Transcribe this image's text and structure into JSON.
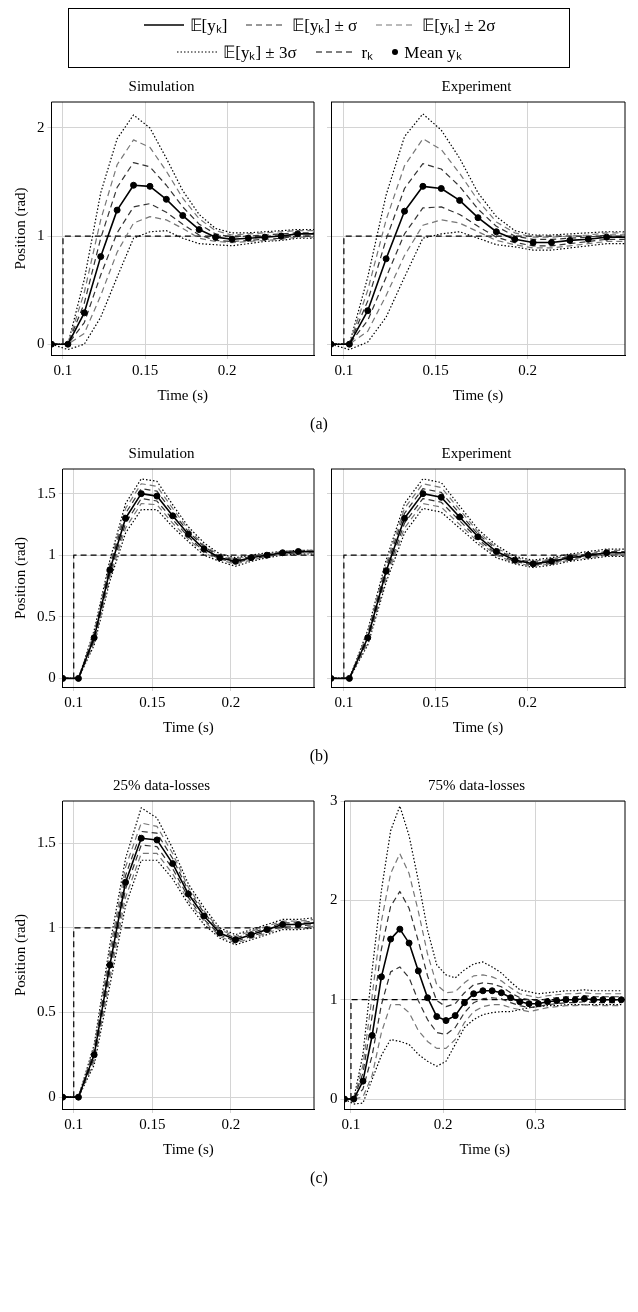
{
  "chart_data": [
    {
      "type": "line",
      "title": "Simulation",
      "xlabel": "Time (s)",
      "ylabel": "Position (rad)",
      "legend": "top",
      "grid": true,
      "annotations": [
        "(a)"
      ],
      "xlim": [
        0.093,
        0.253
      ],
      "xticks": [
        0.1,
        0.15,
        0.2
      ],
      "ylim": [
        -0.1,
        2.24
      ],
      "yticks": [
        0,
        1,
        2
      ],
      "x": [
        0.093,
        0.103,
        0.113,
        0.123,
        0.133,
        0.143,
        0.153,
        0.163,
        0.173,
        0.183,
        0.193,
        0.203,
        0.213,
        0.223,
        0.233,
        0.243,
        0.253
      ],
      "series": [
        {
          "name": "𝔼[yₖ]",
          "color": "#000000",
          "line_style": "solid",
          "values": [
            0,
            0,
            0.29,
            0.81,
            1.24,
            1.47,
            1.46,
            1.34,
            1.19,
            1.06,
            0.99,
            0.97,
            0.98,
            0.99,
            1.0,
            1.02,
            1.02
          ]
        },
        {
          "name": "𝔼[yₖ] ± σ",
          "color": "#333333",
          "line_style": "dashed",
          "values": [
            0,
            0,
            0.38,
            0.98,
            1.45,
            1.68,
            1.64,
            1.47,
            1.27,
            1.11,
            1.02,
            0.99,
            1.0,
            1.01,
            1.02,
            1.03,
            1.03
          ]
        },
        {
          "color": "#333333",
          "line_style": "dashed",
          "values": [
            0,
            0,
            0.2,
            0.64,
            1.03,
            1.27,
            1.3,
            1.22,
            1.11,
            1.01,
            0.96,
            0.95,
            0.96,
            0.97,
            0.98,
            1.0,
            1.0
          ]
        },
        {
          "name": "𝔼[yₖ] ± 2σ",
          "color": "#777777",
          "line_style": "dashed",
          "values": [
            0,
            0,
            0.48,
            1.15,
            1.66,
            1.89,
            1.82,
            1.6,
            1.35,
            1.16,
            1.05,
            1.01,
            1.02,
            1.03,
            1.04,
            1.05,
            1.05
          ]
        },
        {
          "color": "#777777",
          "line_style": "dashed",
          "values": [
            0,
            0,
            0.1,
            0.45,
            0.85,
            1.12,
            1.18,
            1.15,
            1.07,
            0.98,
            0.95,
            0.94,
            0.95,
            0.96,
            0.97,
            0.99,
            0.99
          ]
        },
        {
          "name": "𝔼[yₖ] ± 3σ",
          "color": "#000000",
          "line_style": "dotted",
          "values": [
            0,
            0,
            0.6,
            1.4,
            1.9,
            2.12,
            2.0,
            1.72,
            1.42,
            1.2,
            1.07,
            1.03,
            1.03,
            1.04,
            1.05,
            1.06,
            1.06
          ]
        },
        {
          "color": "#000000",
          "line_style": "dotted",
          "values": [
            0,
            -0.05,
            0.0,
            0.25,
            0.62,
            0.98,
            1.04,
            1.05,
            0.98,
            0.93,
            0.92,
            0.91,
            0.93,
            0.95,
            0.96,
            0.98,
            0.98
          ]
        },
        {
          "name": "rₖ",
          "color": "#000000",
          "line_style": "dashed",
          "x": [
            0.1,
            0.1,
            0.253
          ],
          "values": [
            0,
            1,
            1
          ]
        },
        {
          "name": "Mean yₖ",
          "type": "scatter",
          "color": "#000000",
          "marker": "circle",
          "x": [
            0.093,
            0.103,
            0.113,
            0.123,
            0.133,
            0.143,
            0.153,
            0.163,
            0.173,
            0.183,
            0.193,
            0.203,
            0.213,
            0.223,
            0.233,
            0.243
          ],
          "values": [
            0,
            0,
            0.29,
            0.81,
            1.24,
            1.47,
            1.46,
            1.34,
            1.19,
            1.06,
            0.99,
            0.97,
            0.98,
            0.99,
            1.0,
            1.02
          ]
        }
      ]
    },
    {
      "type": "line",
      "title": "Experiment",
      "xlabel": "Time (s)",
      "grid": true,
      "tick_labels": "x",
      "xlim": [
        0.093,
        0.253
      ],
      "xticks": [
        0.1,
        0.15,
        0.2
      ],
      "ylim": [
        -0.1,
        2.24
      ],
      "yticks": [
        0,
        1,
        2
      ],
      "x": [
        0.093,
        0.103,
        0.113,
        0.123,
        0.133,
        0.143,
        0.153,
        0.163,
        0.173,
        0.183,
        0.193,
        0.203,
        0.213,
        0.223,
        0.233,
        0.243,
        0.253
      ],
      "series": [
        {
          "color": "#000000",
          "line_style": "solid",
          "values": [
            0,
            0,
            0.31,
            0.79,
            1.23,
            1.46,
            1.44,
            1.33,
            1.17,
            1.04,
            0.97,
            0.94,
            0.94,
            0.96,
            0.97,
            0.99,
            0.99
          ]
        },
        {
          "color": "#333333",
          "line_style": "dashed",
          "values": [
            0,
            0,
            0.4,
            0.97,
            1.44,
            1.67,
            1.62,
            1.46,
            1.25,
            1.09,
            1.0,
            0.97,
            0.97,
            0.98,
            0.99,
            1.01,
            1.01
          ]
        },
        {
          "color": "#333333",
          "line_style": "dashed",
          "values": [
            0,
            0,
            0.22,
            0.62,
            1.02,
            1.26,
            1.27,
            1.2,
            1.09,
            0.99,
            0.94,
            0.91,
            0.91,
            0.93,
            0.95,
            0.97,
            0.97
          ]
        },
        {
          "color": "#777777",
          "line_style": "dashed",
          "values": [
            0,
            0,
            0.5,
            1.15,
            1.65,
            1.9,
            1.8,
            1.58,
            1.33,
            1.13,
            1.03,
            0.99,
            0.99,
            1.0,
            1.01,
            1.03,
            1.03
          ]
        },
        {
          "color": "#777777",
          "line_style": "dashed",
          "values": [
            0,
            0,
            0.12,
            0.45,
            0.82,
            1.1,
            1.15,
            1.12,
            1.04,
            0.96,
            0.92,
            0.89,
            0.89,
            0.91,
            0.93,
            0.95,
            0.95
          ]
        },
        {
          "color": "#000000",
          "line_style": "dotted",
          "values": [
            0,
            0,
            0.62,
            1.38,
            1.92,
            2.13,
            1.98,
            1.72,
            1.4,
            1.18,
            1.05,
            1.01,
            1.01,
            1.02,
            1.03,
            1.04,
            1.04
          ]
        },
        {
          "color": "#000000",
          "line_style": "dotted",
          "values": [
            0,
            -0.05,
            0.02,
            0.25,
            0.62,
            0.98,
            1.02,
            1.04,
            0.98,
            0.92,
            0.9,
            0.87,
            0.87,
            0.89,
            0.91,
            0.93,
            0.93
          ]
        },
        {
          "color": "#000000",
          "line_style": "dashed",
          "x": [
            0.1,
            0.1,
            0.253
          ],
          "values": [
            0,
            1,
            1
          ]
        },
        {
          "type": "scatter",
          "color": "#000000",
          "marker": "circle",
          "x": [
            0.093,
            0.103,
            0.113,
            0.123,
            0.133,
            0.143,
            0.153,
            0.163,
            0.173,
            0.183,
            0.193,
            0.203,
            0.213,
            0.223,
            0.233,
            0.243
          ],
          "values": [
            0,
            0,
            0.31,
            0.79,
            1.23,
            1.46,
            1.44,
            1.33,
            1.17,
            1.04,
            0.97,
            0.94,
            0.94,
            0.96,
            0.97,
            0.99
          ]
        }
      ]
    },
    {
      "type": "line",
      "title": "Simulation",
      "xlabel": "Time (s)",
      "ylabel": "Position (rad)",
      "grid": true,
      "annotations": [
        "(b)"
      ],
      "xlim": [
        0.093,
        0.253
      ],
      "xticks": [
        0.1,
        0.15,
        0.2
      ],
      "ylim": [
        -0.07,
        1.7
      ],
      "yticks": [
        0,
        0.5,
        1,
        1.5
      ],
      "x": [
        0.093,
        0.103,
        0.113,
        0.123,
        0.133,
        0.143,
        0.153,
        0.163,
        0.173,
        0.183,
        0.193,
        0.203,
        0.213,
        0.223,
        0.233,
        0.243,
        0.253
      ],
      "series": [
        {
          "color": "#000000",
          "line_style": "solid",
          "values": [
            0,
            0,
            0.33,
            0.88,
            1.3,
            1.5,
            1.48,
            1.32,
            1.17,
            1.05,
            0.98,
            0.95,
            0.98,
            1.0,
            1.02,
            1.03,
            1.03
          ]
        },
        {
          "color": "#333333",
          "line_style": "dashed",
          "values": [
            0,
            0,
            0.35,
            0.91,
            1.34,
            1.54,
            1.52,
            1.35,
            1.19,
            1.07,
            0.99,
            0.96,
            0.99,
            1.01,
            1.02,
            1.03,
            1.03
          ]
        },
        {
          "color": "#333333",
          "line_style": "dashed",
          "values": [
            0,
            0,
            0.31,
            0.85,
            1.26,
            1.46,
            1.44,
            1.29,
            1.15,
            1.03,
            0.97,
            0.94,
            0.97,
            0.99,
            1.01,
            1.02,
            1.02
          ]
        },
        {
          "color": "#777777",
          "line_style": "dashed",
          "values": [
            0,
            0,
            0.37,
            0.93,
            1.38,
            1.58,
            1.56,
            1.38,
            1.21,
            1.08,
            1.0,
            0.97,
            1.0,
            1.01,
            1.03,
            1.04,
            1.04
          ]
        },
        {
          "color": "#777777",
          "line_style": "dashed",
          "values": [
            0,
            0,
            0.29,
            0.82,
            1.22,
            1.42,
            1.41,
            1.26,
            1.13,
            1.02,
            0.96,
            0.93,
            0.96,
            0.99,
            1.01,
            1.02,
            1.02
          ]
        },
        {
          "color": "#000000",
          "line_style": "dotted",
          "values": [
            0,
            0,
            0.39,
            0.96,
            1.42,
            1.62,
            1.6,
            1.41,
            1.23,
            1.1,
            1.01,
            0.98,
            1.0,
            1.02,
            1.03,
            1.04,
            1.04
          ]
        },
        {
          "color": "#000000",
          "line_style": "dotted",
          "values": [
            0,
            0,
            0.27,
            0.79,
            1.18,
            1.37,
            1.37,
            1.23,
            1.11,
            1.0,
            0.95,
            0.91,
            0.95,
            0.98,
            1.0,
            1.01,
            1.01
          ]
        },
        {
          "color": "#000000",
          "line_style": "dashed",
          "x": [
            0.1,
            0.1,
            0.253
          ],
          "values": [
            0,
            1,
            1
          ]
        },
        {
          "type": "scatter",
          "color": "#000000",
          "marker": "circle",
          "x": [
            0.093,
            0.103,
            0.113,
            0.123,
            0.133,
            0.143,
            0.153,
            0.163,
            0.173,
            0.183,
            0.193,
            0.203,
            0.213,
            0.223,
            0.233,
            0.243
          ],
          "values": [
            0,
            0,
            0.33,
            0.88,
            1.3,
            1.5,
            1.48,
            1.32,
            1.17,
            1.05,
            0.98,
            0.95,
            0.98,
            1.0,
            1.02,
            1.03
          ]
        }
      ]
    },
    {
      "type": "line",
      "title": "Experiment",
      "xlabel": "Time (s)",
      "grid": true,
      "tick_labels": "x",
      "xlim": [
        0.093,
        0.253
      ],
      "xticks": [
        0.1,
        0.15,
        0.2
      ],
      "ylim": [
        -0.07,
        1.7
      ],
      "yticks": [
        0,
        0.5,
        1,
        1.5
      ],
      "x": [
        0.093,
        0.103,
        0.113,
        0.123,
        0.133,
        0.143,
        0.153,
        0.163,
        0.173,
        0.183,
        0.193,
        0.203,
        0.213,
        0.223,
        0.233,
        0.243,
        0.253
      ],
      "series": [
        {
          "color": "#000000",
          "line_style": "solid",
          "values": [
            0,
            0,
            0.33,
            0.87,
            1.3,
            1.5,
            1.47,
            1.31,
            1.15,
            1.03,
            0.96,
            0.93,
            0.95,
            0.98,
            1.0,
            1.02,
            1.02
          ]
        },
        {
          "color": "#333333",
          "line_style": "dashed",
          "values": [
            0,
            0,
            0.35,
            0.9,
            1.34,
            1.54,
            1.51,
            1.34,
            1.17,
            1.05,
            0.97,
            0.94,
            0.96,
            0.99,
            1.01,
            1.03,
            1.03
          ]
        },
        {
          "color": "#333333",
          "line_style": "dashed",
          "values": [
            0,
            0,
            0.31,
            0.84,
            1.26,
            1.46,
            1.43,
            1.28,
            1.13,
            1.01,
            0.95,
            0.92,
            0.94,
            0.97,
            0.99,
            1.01,
            1.01
          ]
        },
        {
          "color": "#777777",
          "line_style": "dashed",
          "values": [
            0,
            0,
            0.37,
            0.93,
            1.38,
            1.58,
            1.55,
            1.37,
            1.19,
            1.06,
            0.98,
            0.95,
            0.97,
            1.0,
            1.02,
            1.04,
            1.04
          ]
        },
        {
          "color": "#777777",
          "line_style": "dashed",
          "values": [
            0,
            0,
            0.29,
            0.81,
            1.22,
            1.42,
            1.39,
            1.25,
            1.11,
            1.0,
            0.94,
            0.91,
            0.93,
            0.96,
            0.98,
            1.0,
            1.0
          ]
        },
        {
          "color": "#000000",
          "line_style": "dotted",
          "values": [
            0,
            0,
            0.39,
            0.96,
            1.42,
            1.62,
            1.59,
            1.4,
            1.21,
            1.08,
            0.99,
            0.96,
            0.98,
            1.01,
            1.03,
            1.05,
            1.05
          ]
        },
        {
          "color": "#000000",
          "line_style": "dotted",
          "values": [
            0,
            0,
            0.27,
            0.78,
            1.18,
            1.38,
            1.35,
            1.22,
            1.09,
            0.98,
            0.93,
            0.9,
            0.92,
            0.95,
            0.97,
            0.99,
            0.99
          ]
        },
        {
          "color": "#000000",
          "line_style": "dashed",
          "x": [
            0.1,
            0.1,
            0.253
          ],
          "values": [
            0,
            1,
            1
          ]
        },
        {
          "type": "scatter",
          "color": "#000000",
          "marker": "circle",
          "x": [
            0.093,
            0.103,
            0.113,
            0.123,
            0.133,
            0.143,
            0.153,
            0.163,
            0.173,
            0.183,
            0.193,
            0.203,
            0.213,
            0.223,
            0.233,
            0.243
          ],
          "values": [
            0,
            0,
            0.33,
            0.87,
            1.3,
            1.5,
            1.47,
            1.31,
            1.15,
            1.03,
            0.96,
            0.93,
            0.95,
            0.98,
            1.0,
            1.02
          ]
        }
      ]
    },
    {
      "type": "line",
      "title": "25% data-losses",
      "xlabel": "Time (s)",
      "ylabel": "Position (rad)",
      "grid": true,
      "annotations": [
        "(c)"
      ],
      "xlim": [
        0.093,
        0.253
      ],
      "xticks": [
        0.1,
        0.15,
        0.2
      ],
      "ylim": [
        -0.07,
        1.75
      ],
      "yticks": [
        0,
        0.5,
        1,
        1.5
      ],
      "x": [
        0.093,
        0.103,
        0.113,
        0.123,
        0.133,
        0.143,
        0.153,
        0.163,
        0.173,
        0.183,
        0.193,
        0.203,
        0.213,
        0.223,
        0.233,
        0.243,
        0.253
      ],
      "series": [
        {
          "color": "#000000",
          "line_style": "solid",
          "values": [
            0,
            0,
            0.25,
            0.78,
            1.27,
            1.53,
            1.52,
            1.38,
            1.2,
            1.07,
            0.97,
            0.93,
            0.96,
            0.99,
            1.02,
            1.02,
            1.03
          ]
        },
        {
          "color": "#333333",
          "line_style": "dashed",
          "values": [
            0,
            0,
            0.27,
            0.82,
            1.31,
            1.57,
            1.56,
            1.41,
            1.22,
            1.09,
            0.98,
            0.94,
            0.97,
            1.0,
            1.03,
            1.03,
            1.04
          ]
        },
        {
          "color": "#333333",
          "line_style": "dashed",
          "values": [
            0,
            0,
            0.23,
            0.74,
            1.23,
            1.49,
            1.48,
            1.35,
            1.18,
            1.05,
            0.96,
            0.92,
            0.95,
            0.98,
            1.01,
            1.01,
            1.02
          ]
        },
        {
          "color": "#777777",
          "line_style": "dashed",
          "values": [
            0,
            0,
            0.29,
            0.86,
            1.36,
            1.62,
            1.6,
            1.44,
            1.24,
            1.1,
            0.99,
            0.95,
            0.98,
            1.01,
            1.04,
            1.04,
            1.05
          ]
        },
        {
          "color": "#777777",
          "line_style": "dashed",
          "values": [
            0,
            0,
            0.21,
            0.7,
            1.18,
            1.44,
            1.44,
            1.32,
            1.16,
            1.04,
            0.95,
            0.91,
            0.94,
            0.97,
            1.0,
            1.0,
            1.01
          ]
        },
        {
          "color": "#000000",
          "line_style": "dotted",
          "values": [
            0,
            0,
            0.31,
            0.9,
            1.41,
            1.71,
            1.65,
            1.47,
            1.26,
            1.12,
            1.0,
            0.96,
            0.99,
            1.02,
            1.05,
            1.05,
            1.06
          ]
        },
        {
          "color": "#000000",
          "line_style": "dotted",
          "values": [
            0,
            0,
            0.19,
            0.66,
            1.13,
            1.4,
            1.4,
            1.29,
            1.14,
            1.02,
            0.94,
            0.9,
            0.93,
            0.96,
            0.99,
            0.99,
            1.0
          ]
        },
        {
          "color": "#000000",
          "line_style": "dashed",
          "x": [
            0.1,
            0.1,
            0.253
          ],
          "values": [
            0,
            1,
            1
          ]
        },
        {
          "type": "scatter",
          "color": "#000000",
          "marker": "circle",
          "x": [
            0.093,
            0.103,
            0.113,
            0.123,
            0.133,
            0.143,
            0.153,
            0.163,
            0.173,
            0.183,
            0.193,
            0.203,
            0.213,
            0.223,
            0.233,
            0.243
          ],
          "values": [
            0,
            0,
            0.25,
            0.78,
            1.27,
            1.53,
            1.52,
            1.38,
            1.2,
            1.07,
            0.97,
            0.93,
            0.96,
            0.99,
            1.02,
            1.02
          ]
        }
      ]
    },
    {
      "type": "line",
      "title": "75% data-losses",
      "xlabel": "Time (s)",
      "grid": true,
      "xlim": [
        0.093,
        0.397
      ],
      "xticks": [
        0.1,
        0.2,
        0.3
      ],
      "ylim": [
        -0.1,
        3
      ],
      "yticks": [
        0,
        1,
        2,
        3
      ],
      "x": [
        0.093,
        0.103,
        0.113,
        0.123,
        0.133,
        0.143,
        0.153,
        0.163,
        0.173,
        0.183,
        0.193,
        0.203,
        0.213,
        0.223,
        0.233,
        0.243,
        0.253,
        0.263,
        0.273,
        0.283,
        0.293,
        0.303,
        0.313,
        0.323,
        0.333,
        0.343,
        0.353,
        0.363,
        0.373,
        0.383,
        0.393
      ],
      "series": [
        {
          "color": "#000000",
          "line_style": "solid",
          "values": [
            0,
            0,
            0.18,
            0.64,
            1.23,
            1.61,
            1.71,
            1.57,
            1.29,
            1.02,
            0.83,
            0.79,
            0.84,
            0.97,
            1.06,
            1.09,
            1.09,
            1.07,
            1.02,
            0.98,
            0.96,
            0.96,
            0.98,
            0.99,
            1.0,
            1.0,
            1.01,
            1.0,
            1.0,
            1.0,
            1.0
          ]
        },
        {
          "color": "#333333",
          "line_style": "dashed",
          "values": [
            0,
            0,
            0.26,
            0.84,
            1.51,
            1.94,
            2.09,
            1.92,
            1.59,
            1.24,
            0.99,
            0.93,
            0.96,
            1.07,
            1.15,
            1.17,
            1.16,
            1.13,
            1.07,
            1.02,
            1.0,
            0.99,
            1.01,
            1.02,
            1.03,
            1.03,
            1.04,
            1.03,
            1.03,
            1.03,
            1.03
          ]
        },
        {
          "color": "#333333",
          "line_style": "dashed",
          "values": [
            0,
            0,
            0.1,
            0.44,
            0.95,
            1.28,
            1.33,
            1.22,
            0.99,
            0.8,
            0.67,
            0.65,
            0.72,
            0.87,
            0.97,
            1.01,
            1.02,
            1.01,
            0.97,
            0.94,
            0.92,
            0.93,
            0.95,
            0.96,
            0.97,
            0.97,
            0.98,
            0.97,
            0.97,
            0.97,
            0.97
          ]
        },
        {
          "color": "#777777",
          "line_style": "dashed",
          "values": [
            0,
            0,
            0.34,
            1.04,
            1.79,
            2.27,
            2.47,
            2.27,
            1.89,
            1.46,
            1.15,
            1.07,
            1.08,
            1.17,
            1.24,
            1.25,
            1.23,
            1.19,
            1.12,
            1.06,
            1.04,
            1.02,
            1.04,
            1.05,
            1.06,
            1.06,
            1.07,
            1.06,
            1.06,
            1.06,
            1.06
          ]
        },
        {
          "color": "#777777",
          "line_style": "dashed",
          "values": [
            0,
            0,
            0.02,
            0.24,
            0.67,
            0.95,
            0.95,
            0.87,
            0.69,
            0.58,
            0.51,
            0.51,
            0.6,
            0.77,
            0.88,
            0.93,
            0.95,
            0.95,
            0.92,
            0.9,
            0.88,
            0.9,
            0.92,
            0.93,
            0.94,
            0.94,
            0.95,
            0.94,
            0.94,
            0.94,
            0.94
          ]
        },
        {
          "color": "#000000",
          "line_style": "dotted",
          "values": [
            0,
            0,
            0.45,
            1.3,
            2.1,
            2.7,
            2.95,
            2.65,
            2.2,
            1.7,
            1.35,
            1.25,
            1.22,
            1.3,
            1.36,
            1.38,
            1.33,
            1.27,
            1.18,
            1.1,
            1.08,
            1.06,
            1.07,
            1.08,
            1.09,
            1.09,
            1.1,
            1.09,
            1.09,
            1.09,
            1.09
          ]
        },
        {
          "color": "#000000",
          "line_style": "dotted",
          "values": [
            0,
            -0.05,
            -0.04,
            0.2,
            0.44,
            0.6,
            0.58,
            0.55,
            0.45,
            0.38,
            0.33,
            0.38,
            0.55,
            0.72,
            0.8,
            0.85,
            0.87,
            0.88,
            0.88,
            0.9,
            0.92,
            0.93,
            0.94,
            0.94,
            0.95,
            0.95,
            0.95,
            0.95,
            0.95,
            0.95,
            0.95
          ]
        },
        {
          "color": "#000000",
          "line_style": "dashed",
          "x": [
            0.1,
            0.1,
            0.397
          ],
          "values": [
            0,
            1,
            1
          ]
        },
        {
          "type": "scatter",
          "color": "#000000",
          "marker": "circle",
          "x": [
            0.093,
            0.103,
            0.113,
            0.123,
            0.133,
            0.143,
            0.153,
            0.163,
            0.173,
            0.183,
            0.193,
            0.203,
            0.213,
            0.223,
            0.233,
            0.243,
            0.253,
            0.263,
            0.273,
            0.283,
            0.293,
            0.303,
            0.313,
            0.323,
            0.333,
            0.343,
            0.353,
            0.363,
            0.373,
            0.383,
            0.393
          ],
          "values": [
            0,
            0,
            0.18,
            0.64,
            1.23,
            1.61,
            1.71,
            1.57,
            1.29,
            1.02,
            0.83,
            0.79,
            0.84,
            0.97,
            1.06,
            1.09,
            1.09,
            1.07,
            1.02,
            0.98,
            0.96,
            0.96,
            0.98,
            0.99,
            1.0,
            1.0,
            1.01,
            1.0,
            1.0,
            1.0,
            1.0
          ]
        }
      ]
    }
  ]
}
